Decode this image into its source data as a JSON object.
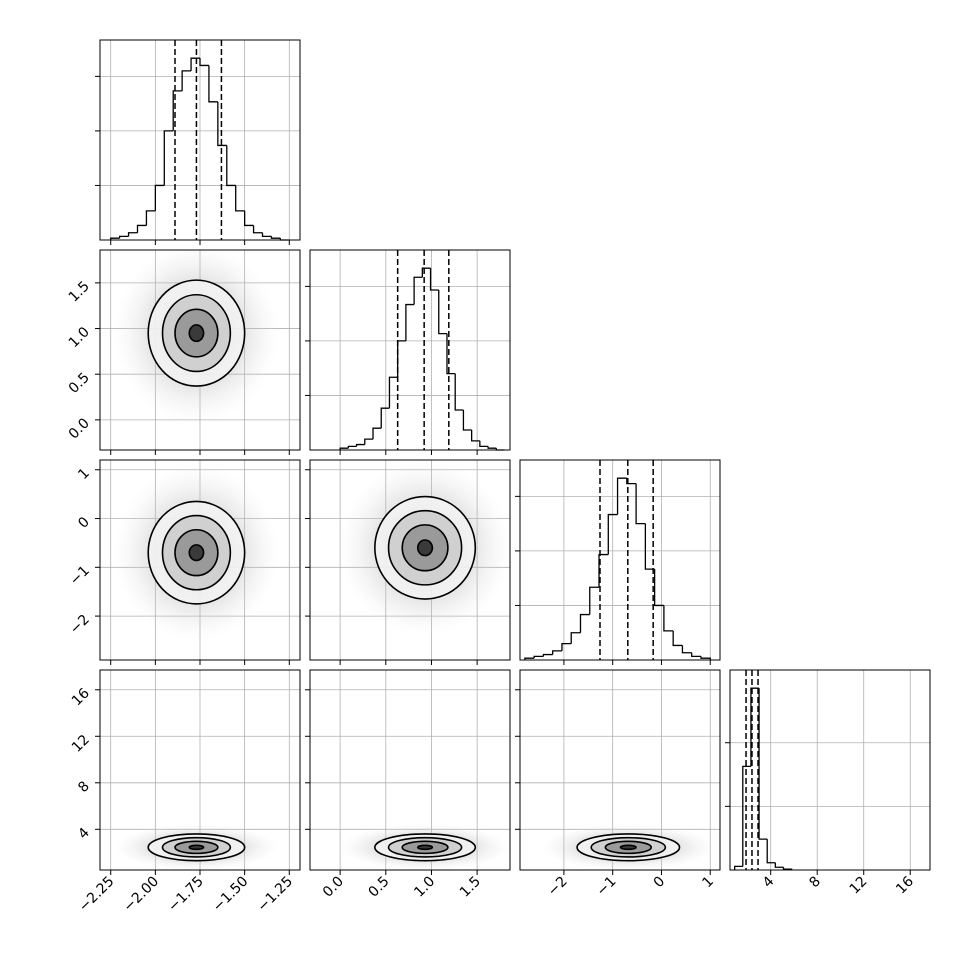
{
  "chart_data": {
    "type": "corner",
    "color": "#000000",
    "grid": true,
    "level_colors": [
      "#f2f2f2",
      "#cccccc",
      "#939393",
      "#303030"
    ],
    "params": [
      {
        "lim": [
          -2.31,
          -1.19
        ],
        "ticks": [
          {
            "value": -2.25,
            "label": "−2.25"
          },
          {
            "value": -2,
            "label": "−2.00"
          },
          {
            "value": -1.75,
            "label": "−1.75"
          },
          {
            "value": -1.5,
            "label": "−1.50"
          },
          {
            "value": -1.25,
            "label": "−1.25"
          }
        ]
      },
      {
        "lim": [
          -0.33,
          1.86
        ],
        "ticks": [
          {
            "value": 0,
            "label": "0.0"
          },
          0.5,
          {
            "value": 1,
            "label": "1.0"
          },
          1.5
        ]
      },
      {
        "lim": [
          -2.9,
          1.2
        ],
        "ticks": [
          {
            "value": -2,
            "label": "−2"
          },
          {
            "value": -1,
            "label": "−1"
          },
          0,
          1
        ]
      },
      {
        "lim": [
          0.5,
          17.7
        ],
        "ticks": [
          4,
          8,
          12,
          16
        ]
      }
    ],
    "histograms": [
      {
        "bins": [
          -2.25,
          -2.2,
          -2.15,
          -2.1,
          -2.05,
          -2.0,
          -1.95,
          -1.9,
          -1.85,
          -1.8,
          -1.75,
          -1.7,
          -1.65,
          -1.6,
          -1.55,
          -1.5,
          -1.45,
          -1.4,
          -1.35,
          -1.3,
          -1.25
        ],
        "values": [
          0.01,
          0.02,
          0.04,
          0.08,
          0.16,
          0.3,
          0.6,
          0.82,
          0.93,
          1.0,
          0.96,
          0.76,
          0.52,
          0.3,
          0.16,
          0.08,
          0.04,
          0.02,
          0.01,
          0.0
        ],
        "quantiles": [
          -1.89,
          -1.77,
          -1.63
        ],
        "ylim": [
          0,
          1.1
        ],
        "yticks": [
          0.3,
          0.6,
          0.9
        ]
      },
      {
        "bins": [
          0,
          0.09,
          0.18,
          0.27,
          0.36,
          0.45,
          0.54,
          0.63,
          0.72,
          0.81,
          0.9,
          0.99,
          1.08,
          1.17,
          1.26,
          1.35,
          1.44,
          1.53,
          1.62,
          1.71,
          1.8
        ],
        "values": [
          0.01,
          0.02,
          0.03,
          0.06,
          0.12,
          0.23,
          0.4,
          0.6,
          0.8,
          0.95,
          1.0,
          0.88,
          0.64,
          0.42,
          0.22,
          0.11,
          0.05,
          0.02,
          0.01,
          0.0
        ],
        "quantiles": [
          0.63,
          0.92,
          1.19
        ],
        "ylim": [
          0,
          1.1
        ],
        "yticks": [
          0.3,
          0.6,
          0.9
        ]
      },
      {
        "bins": [
          -2.8,
          -2.61,
          -2.42,
          -2.23,
          -2.04,
          -1.85,
          -1.66,
          -1.47,
          -1.28,
          -1.09,
          -0.9,
          -0.71,
          -0.52,
          -0.33,
          -0.14,
          0.05,
          0.24,
          0.43,
          0.62,
          0.81,
          1.0
        ],
        "values": [
          0.01,
          0.02,
          0.03,
          0.05,
          0.09,
          0.15,
          0.25,
          0.4,
          0.58,
          0.8,
          1.0,
          0.97,
          0.75,
          0.5,
          0.3,
          0.16,
          0.08,
          0.04,
          0.02,
          0.01
        ],
        "quantiles": [
          -1.26,
          -0.69,
          -0.17
        ],
        "ylim": [
          0,
          1.1
        ],
        "yticks": [
          0.3,
          0.6,
          0.9
        ]
      },
      {
        "bins": [
          0.9,
          1.6,
          2.3,
          3.0,
          3.7,
          4.4,
          5.1,
          5.8
        ],
        "values": [
          0.02,
          0.57,
          1.0,
          0.17,
          0.04,
          0.015,
          0.005
        ],
        "quantiles": [
          1.88,
          2.39,
          2.91
        ],
        "ylim": [
          0,
          1.1
        ],
        "yticks": [
          0.35,
          0.7
        ]
      }
    ],
    "pairs": [
      {
        "center": [
          -1.77,
          0.95
        ],
        "levels": [
          {
            "rx": 0.27,
            "ry": 0.58
          },
          {
            "rx": 0.19,
            "ry": 0.42
          },
          {
            "rx": 0.12,
            "ry": 0.26
          },
          {
            "rx": 0.04,
            "ry": 0.09
          }
        ]
      },
      {
        "center": [
          -1.77,
          -0.7
        ],
        "levels": [
          {
            "rx": 0.27,
            "ry": 1.05
          },
          {
            "rx": 0.19,
            "ry": 0.76
          },
          {
            "rx": 0.12,
            "ry": 0.47
          },
          {
            "rx": 0.04,
            "ry": 0.16
          }
        ]
      },
      {
        "center": [
          0.93,
          -0.6
        ],
        "levels": [
          {
            "rx": 0.55,
            "ry": 1.05
          },
          {
            "rx": 0.4,
            "ry": 0.76
          },
          {
            "rx": 0.25,
            "ry": 0.47
          },
          {
            "rx": 0.08,
            "ry": 0.16
          }
        ]
      },
      {
        "center": [
          -1.77,
          2.45
        ],
        "levels": [
          {
            "rx": 0.27,
            "ry": 1.15
          },
          {
            "rx": 0.19,
            "ry": 0.83
          },
          {
            "rx": 0.12,
            "ry": 0.52
          },
          {
            "rx": 0.04,
            "ry": 0.17
          }
        ]
      },
      {
        "center": [
          0.93,
          2.45
        ],
        "levels": [
          {
            "rx": 0.55,
            "ry": 1.15
          },
          {
            "rx": 0.4,
            "ry": 0.83
          },
          {
            "rx": 0.25,
            "ry": 0.52
          },
          {
            "rx": 0.08,
            "ry": 0.17
          }
        ]
      },
      {
        "center": [
          -0.68,
          2.45
        ],
        "levels": [
          {
            "rx": 1.05,
            "ry": 1.15
          },
          {
            "rx": 0.76,
            "ry": 0.83
          },
          {
            "rx": 0.47,
            "ry": 0.52
          },
          {
            "rx": 0.16,
            "ry": 0.17
          }
        ]
      }
    ]
  }
}
